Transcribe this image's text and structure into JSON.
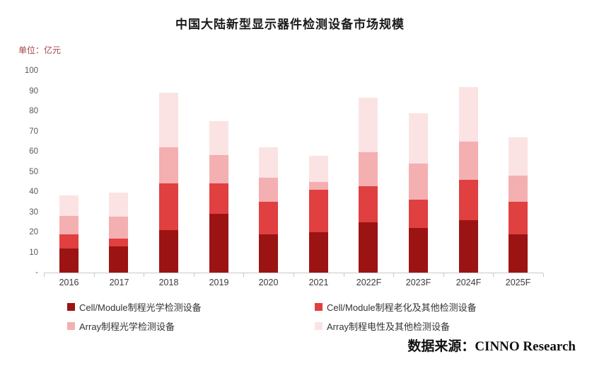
{
  "title": "中国大陆新型显示器件检测设备市场规模",
  "unit_label": "单位：亿元",
  "source": "数据来源：CINNO Research",
  "chart_data": {
    "type": "bar",
    "stacked": true,
    "title": "中国大陆新型显示器件检测设备市场规模",
    "ylabel": "单位：亿元",
    "ylim": [
      0,
      100
    ],
    "ytick_step": 10,
    "ytick_labels": [
      "-",
      "10",
      "20",
      "30",
      "40",
      "50",
      "60",
      "70",
      "80",
      "90",
      "100"
    ],
    "grid": false,
    "legend_position": "bottom",
    "categories": [
      "2016",
      "2017",
      "2018",
      "2019",
      "2020",
      "2021",
      "2022F",
      "2023F",
      "2024F",
      "2025F"
    ],
    "series": [
      {
        "name": "Cell/Module制程光学检测设备",
        "color": "#9C1313",
        "values": [
          12,
          13,
          21,
          29,
          19,
          20,
          25,
          22,
          26,
          19
        ]
      },
      {
        "name": "Cell/Module制程老化及其他检测设备",
        "color": "#E04040",
        "values": [
          7,
          4,
          23,
          15,
          16,
          21,
          18,
          14,
          20,
          16
        ]
      },
      {
        "name": "Array制程光学检测设备",
        "color": "#F4AFB1",
        "values": [
          9,
          11,
          18,
          14,
          12,
          4,
          17,
          18,
          19,
          13
        ]
      },
      {
        "name": "Array制程电性及其他检测设备",
        "color": "#FBE3E4",
        "values": [
          10,
          12,
          27,
          17,
          15,
          13,
          27,
          25,
          27,
          19
        ]
      }
    ],
    "totals": [
      38,
      40,
      89,
      75,
      62,
      58,
      87,
      79,
      92,
      67
    ]
  }
}
